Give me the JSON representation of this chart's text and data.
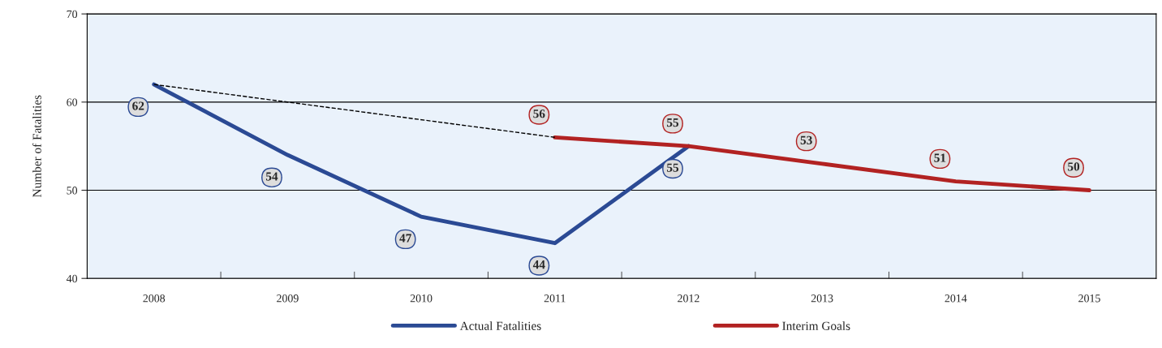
{
  "chart_data": {
    "type": "line",
    "ylabel": "Number of Fatalities",
    "categories": [
      "2008",
      "2009",
      "2010",
      "2011",
      "2012",
      "2013",
      "2014",
      "2015"
    ],
    "series": [
      {
        "name": "Actual Fatalities",
        "color": "#2b4a94",
        "values": [
          62,
          54,
          47,
          44,
          55,
          null,
          null,
          null
        ],
        "value_labels": [
          "62",
          "54",
          "47",
          "44",
          "55",
          null,
          null,
          null
        ]
      },
      {
        "name": "Interim Goals",
        "color": "#b22222",
        "values": [
          null,
          null,
          null,
          56,
          55,
          53,
          51,
          50
        ],
        "value_labels": [
          null,
          null,
          null,
          "56",
          "55",
          "53",
          "51",
          "50"
        ]
      },
      {
        "color": "#000000",
        "values": [
          62,
          null,
          null,
          56,
          null,
          null,
          null,
          null
        ],
        "line_style": "dashed"
      }
    ],
    "ylim": [
      40,
      70
    ],
    "yticks": [
      40,
      50,
      60,
      70
    ],
    "grid": "y",
    "legend": "bottom",
    "marker": "none"
  }
}
